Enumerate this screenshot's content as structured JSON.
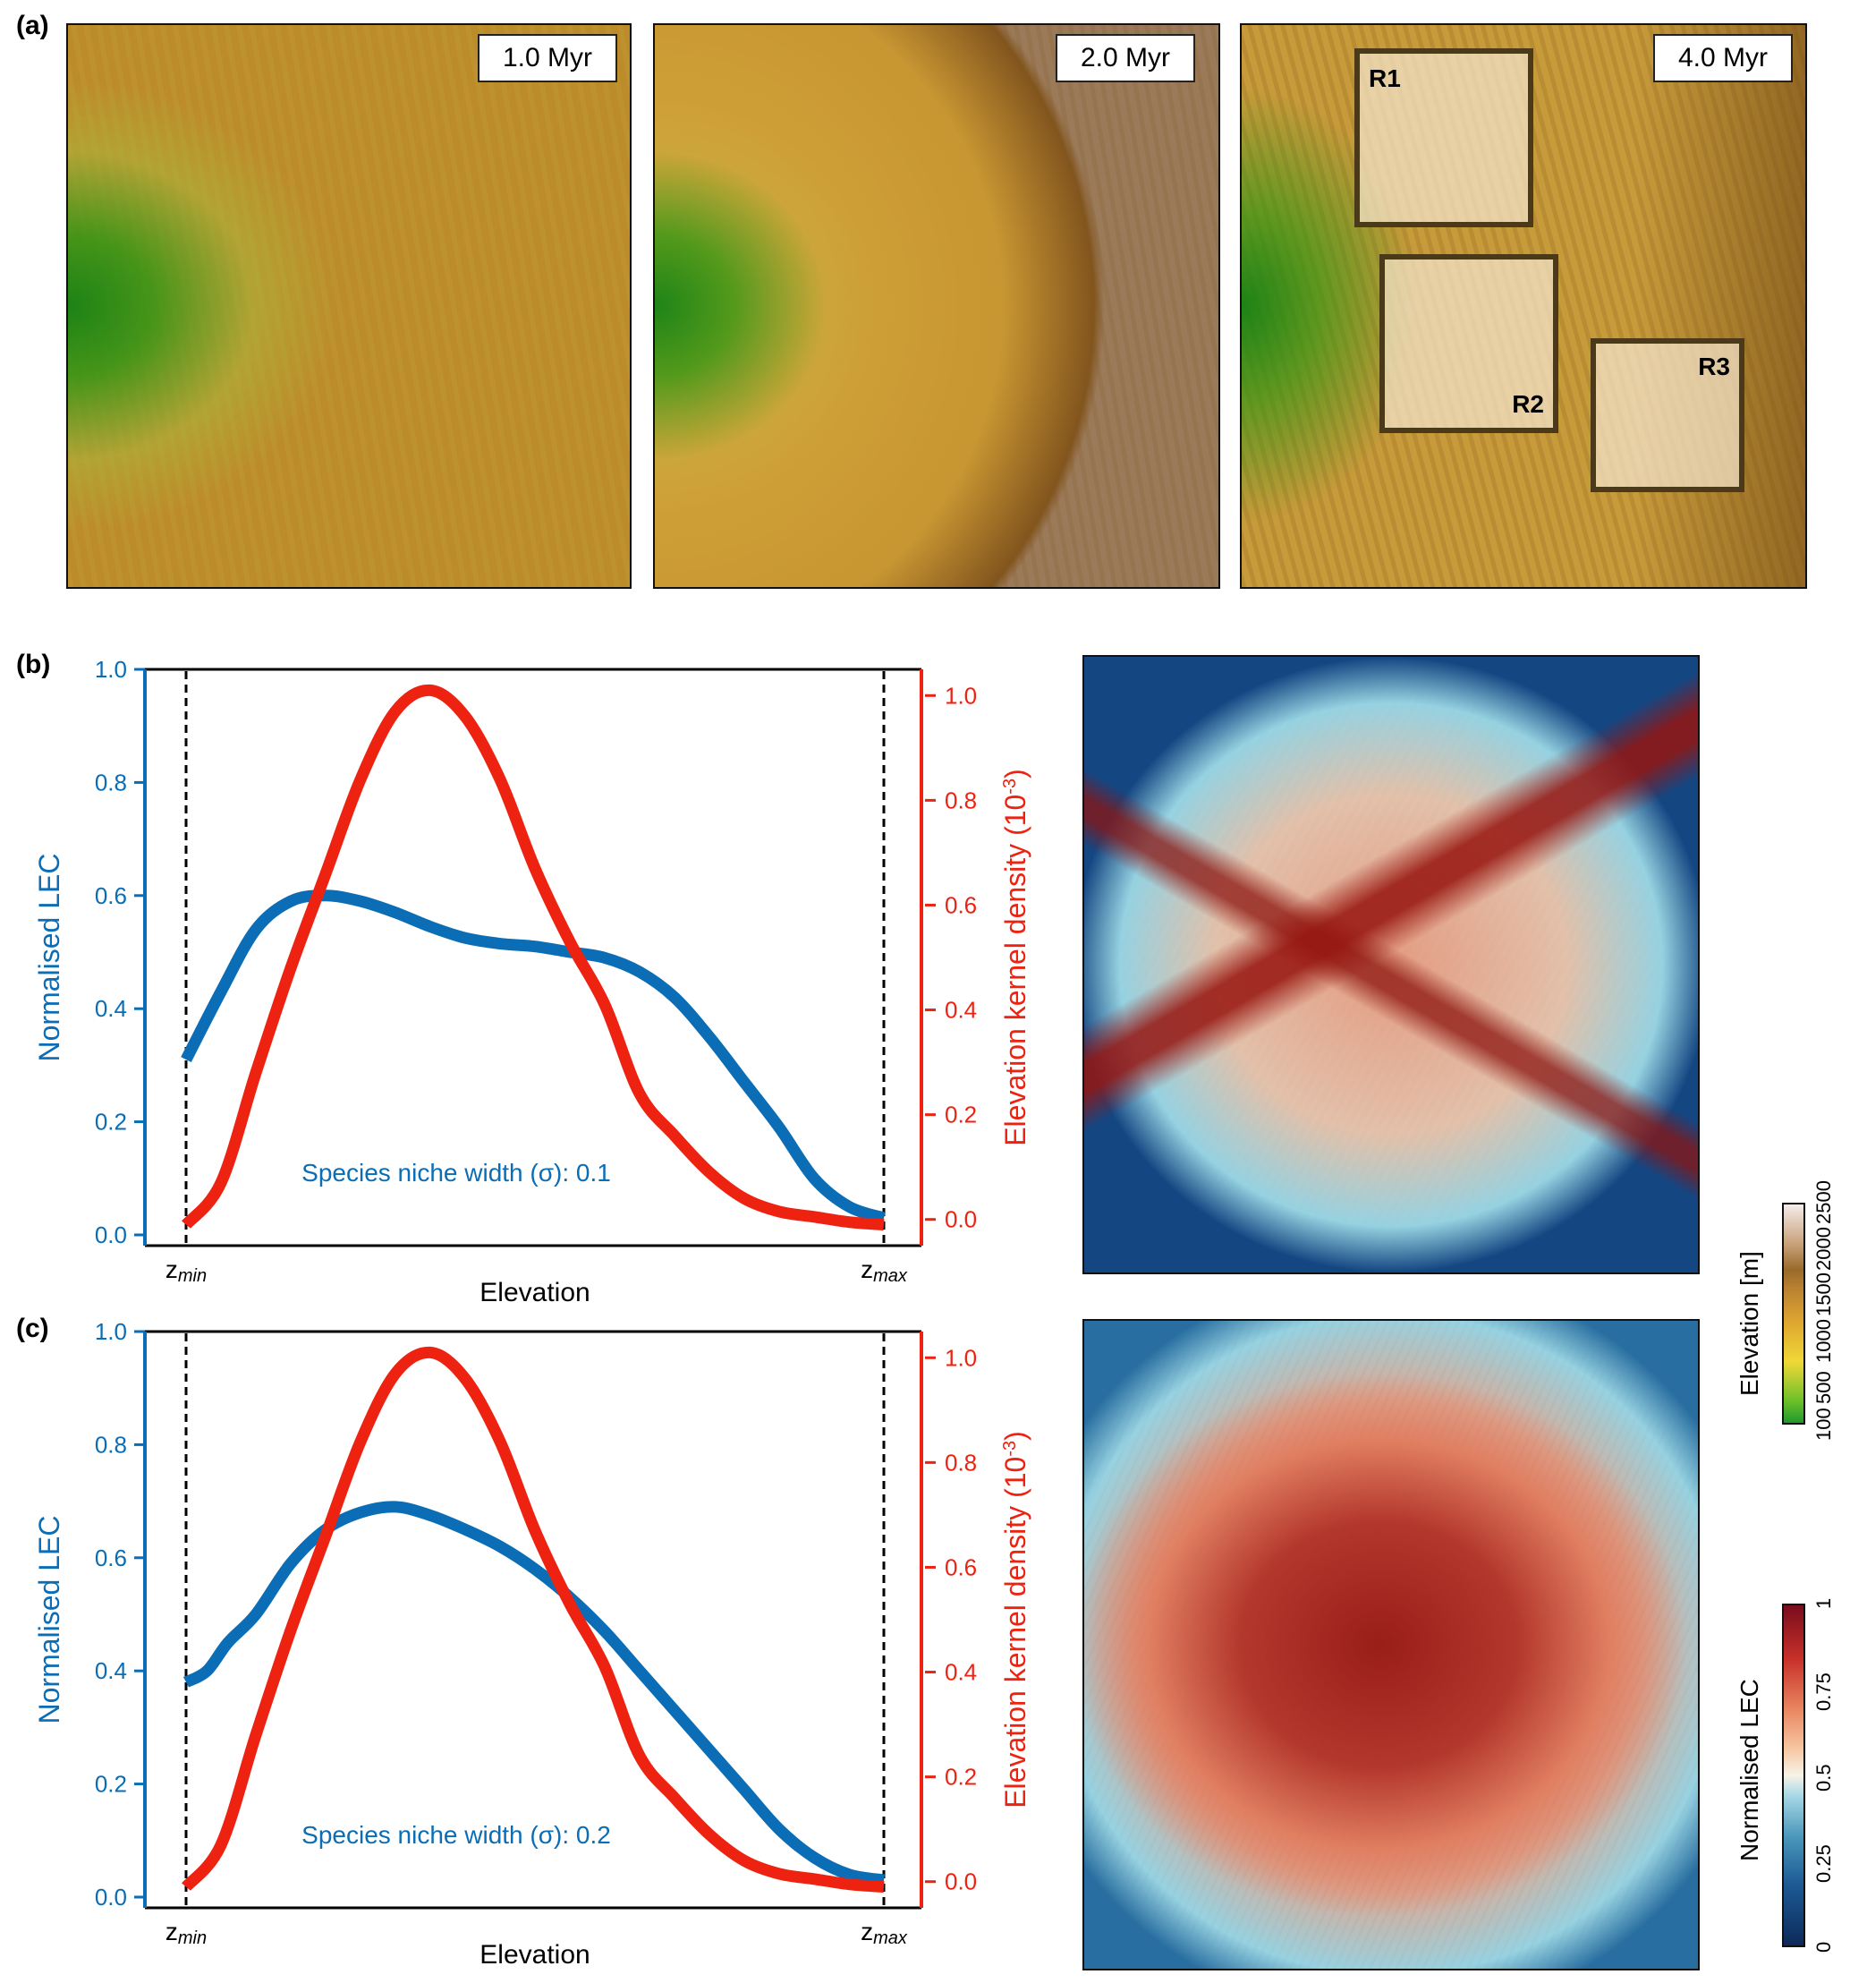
{
  "panel_labels": {
    "a": "(a)",
    "b": "(b)",
    "c": "(c)"
  },
  "panel_a": {
    "maps": [
      {
        "time_label": "1.0 Myr"
      },
      {
        "time_label": "2.0 Myr"
      },
      {
        "time_label": "4.0 Myr",
        "regions": [
          "R1",
          "R2",
          "R3"
        ]
      }
    ]
  },
  "colors": {
    "lec_blue": "#0a6db5",
    "density_red": "#ee2211",
    "axis_black": "#000000"
  },
  "colorbars": {
    "elevation": {
      "title": "Elevation [m]",
      "ticks": [
        "100",
        "500",
        "1000",
        "1500",
        "2000",
        "2500"
      ],
      "range": [
        100,
        2500
      ]
    },
    "lec": {
      "title": "Normalised LEC",
      "ticks": [
        "0",
        "0.25",
        "0.5",
        "0.75",
        "1"
      ],
      "range": [
        0,
        1
      ]
    }
  },
  "chart_data": [
    {
      "type": "line",
      "panel": "(b)",
      "xlabel": "Elevation",
      "x_ticks": [
        "zmin",
        "zmax"
      ],
      "x_tick_main": [
        "z",
        "z"
      ],
      "x_tick_sub": [
        "min",
        "max"
      ],
      "xlim": [
        0,
        1
      ],
      "ylabel_left": "Normalised LEC",
      "ylabel_right": "Elevation kernel density (10",
      "ylabel_right_sup": "-3",
      "ylabel_right_tail": ")",
      "ylim_left": [
        0,
        1
      ],
      "ylim_right": [
        -0.05,
        1.05
      ],
      "yticks_left": [
        "0.0",
        "0.2",
        "0.4",
        "0.6",
        "0.8",
        "1.0"
      ],
      "yticks_right": [
        "0.0",
        "0.2",
        "0.4",
        "0.6",
        "0.8",
        "1.0"
      ],
      "annotation": "Species niche width (σ): 0.1",
      "series": [
        {
          "name": "Normalised LEC",
          "axis": "left",
          "x": [
            0.0,
            0.05,
            0.1,
            0.15,
            0.2,
            0.25,
            0.3,
            0.35,
            0.4,
            0.45,
            0.5,
            0.55,
            0.6,
            0.65,
            0.7,
            0.75,
            0.8,
            0.85,
            0.9,
            0.95,
            1.0
          ],
          "y": [
            0.31,
            0.43,
            0.54,
            0.59,
            0.6,
            0.59,
            0.57,
            0.545,
            0.525,
            0.515,
            0.51,
            0.5,
            0.49,
            0.465,
            0.42,
            0.35,
            0.27,
            0.19,
            0.1,
            0.05,
            0.03
          ]
        },
        {
          "name": "Elevation kernel density",
          "axis": "right",
          "x": [
            0.0,
            0.05,
            0.1,
            0.15,
            0.2,
            0.25,
            0.3,
            0.35,
            0.4,
            0.45,
            0.5,
            0.55,
            0.6,
            0.65,
            0.7,
            0.75,
            0.8,
            0.85,
            0.9,
            0.95,
            1.0
          ],
          "y": [
            -0.01,
            0.07,
            0.28,
            0.48,
            0.66,
            0.84,
            0.97,
            1.01,
            0.96,
            0.84,
            0.67,
            0.53,
            0.41,
            0.24,
            0.16,
            0.09,
            0.04,
            0.015,
            0.005,
            -0.005,
            -0.01
          ]
        }
      ]
    },
    {
      "type": "line",
      "panel": "(c)",
      "xlabel": "Elevation",
      "x_ticks": [
        "zmin",
        "zmax"
      ],
      "x_tick_main": [
        "z",
        "z"
      ],
      "x_tick_sub": [
        "min",
        "max"
      ],
      "xlim": [
        0,
        1
      ],
      "ylabel_left": "Normalised LEC",
      "ylabel_right": "Elevation kernel density (10",
      "ylabel_right_sup": "-3",
      "ylabel_right_tail": ")",
      "ylim_left": [
        0,
        1
      ],
      "ylim_right": [
        -0.05,
        1.05
      ],
      "yticks_left": [
        "0.0",
        "0.2",
        "0.4",
        "0.6",
        "0.8",
        "1.0"
      ],
      "yticks_right": [
        "0.0",
        "0.2",
        "0.4",
        "0.6",
        "0.8",
        "1.0"
      ],
      "annotation": "Species niche width (σ): 0.2",
      "series": [
        {
          "name": "Normalised LEC",
          "axis": "left",
          "x": [
            0.0,
            0.03,
            0.06,
            0.1,
            0.15,
            0.2,
            0.25,
            0.3,
            0.35,
            0.4,
            0.45,
            0.5,
            0.55,
            0.6,
            0.65,
            0.7,
            0.75,
            0.8,
            0.85,
            0.9,
            0.95,
            1.0
          ],
          "y": [
            0.38,
            0.4,
            0.45,
            0.5,
            0.59,
            0.65,
            0.68,
            0.69,
            0.675,
            0.65,
            0.62,
            0.58,
            0.53,
            0.47,
            0.4,
            0.33,
            0.26,
            0.19,
            0.12,
            0.07,
            0.04,
            0.03
          ]
        },
        {
          "name": "Elevation kernel density",
          "axis": "right",
          "x": [
            0.0,
            0.05,
            0.1,
            0.15,
            0.2,
            0.25,
            0.3,
            0.35,
            0.4,
            0.45,
            0.5,
            0.55,
            0.6,
            0.65,
            0.7,
            0.75,
            0.8,
            0.85,
            0.9,
            0.95,
            1.0
          ],
          "y": [
            -0.01,
            0.07,
            0.28,
            0.48,
            0.66,
            0.84,
            0.97,
            1.01,
            0.96,
            0.84,
            0.67,
            0.53,
            0.41,
            0.24,
            0.16,
            0.09,
            0.04,
            0.015,
            0.005,
            -0.005,
            -0.01
          ]
        }
      ]
    }
  ]
}
